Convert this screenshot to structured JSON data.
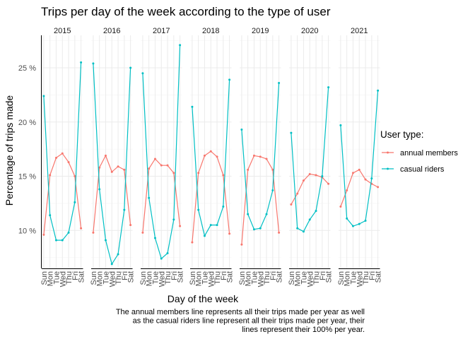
{
  "chart_data": {
    "type": "line",
    "title": "Trips per day of the week according to the type of user",
    "xlabel": "Day of the week",
    "ylabel": "Percentage of trips made",
    "categories": [
      "Sun",
      "Mon",
      "Tue",
      "Wed",
      "Thu",
      "Fri",
      "Sat"
    ],
    "facets": [
      "2015",
      "2016",
      "2017",
      "2018",
      "2019",
      "2020",
      "2021"
    ],
    "ylim": [
      6.5,
      28.0
    ],
    "yticks": [
      10,
      15,
      20,
      25
    ],
    "ytick_labels": [
      "10 %",
      "15 %",
      "20 %",
      "25 %"
    ],
    "legend": {
      "title": "User type:",
      "position": "right"
    },
    "series": [
      {
        "name": "annual members",
        "color": "#F8766D",
        "values": [
          [
            9.6,
            15.1,
            16.7,
            17.1,
            16.3,
            15.0,
            10.2
          ],
          [
            9.8,
            15.8,
            16.9,
            15.4,
            15.9,
            15.6,
            10.5
          ],
          [
            9.8,
            15.7,
            16.6,
            16.0,
            16.0,
            15.3,
            10.4
          ],
          [
            8.9,
            15.3,
            16.9,
            17.3,
            16.8,
            15.1,
            9.7
          ],
          [
            8.7,
            15.6,
            16.9,
            16.8,
            16.6,
            15.6,
            9.8
          ],
          [
            12.4,
            13.4,
            14.6,
            15.2,
            15.1,
            14.9,
            14.3
          ],
          [
            12.2,
            13.7,
            15.3,
            15.6,
            14.7,
            14.3,
            14.0
          ]
        ]
      },
      {
        "name": "casual riders",
        "color": "#00BFC4",
        "values": [
          [
            22.4,
            11.4,
            9.1,
            9.1,
            9.8,
            12.6,
            25.5
          ],
          [
            25.4,
            13.8,
            9.1,
            6.9,
            7.8,
            11.9,
            25.0
          ],
          [
            24.5,
            13.0,
            9.3,
            7.4,
            7.9,
            11.0,
            27.1
          ],
          [
            21.4,
            11.9,
            9.5,
            10.5,
            10.5,
            12.2,
            23.9
          ],
          [
            19.3,
            11.5,
            10.1,
            10.2,
            11.5,
            13.7,
            23.6
          ],
          [
            19.0,
            10.2,
            9.9,
            11.0,
            11.8,
            15.0,
            23.2
          ],
          [
            19.7,
            11.1,
            10.4,
            10.6,
            10.9,
            14.8,
            22.9
          ]
        ]
      }
    ],
    "grid": true,
    "caption": [
      "The annual members line represents all their trips made per year as well",
      "as the casual riders line represent all their trips made per year, their",
      "lines represent their 100% per year."
    ]
  }
}
